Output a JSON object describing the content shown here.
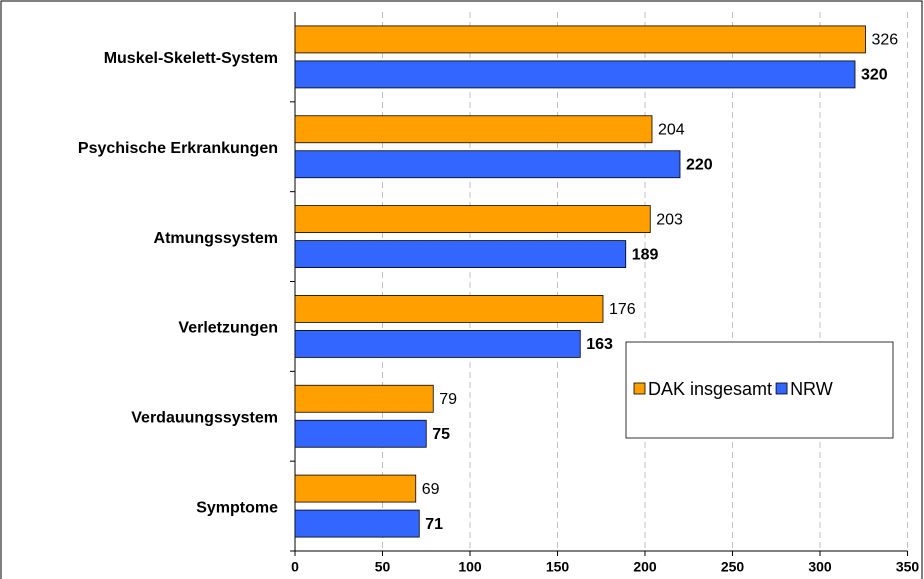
{
  "chart_data": {
    "type": "barh",
    "categories": [
      "Muskel-Skelett-System",
      "Psychische Erkrankungen",
      "Atmungssystem",
      "Verletzungen",
      "Verdauungssystem",
      "Symptome"
    ],
    "series": [
      {
        "name": "DAK insgesamt",
        "color": "#ff9f00",
        "values": [
          326,
          204,
          203,
          176,
          79,
          69
        ]
      },
      {
        "name": "NRW",
        "color": "#3366ff",
        "values": [
          320,
          220,
          189,
          163,
          75,
          71
        ]
      }
    ],
    "xlim": [
      0,
      350
    ],
    "xticks": [
      0,
      50,
      100,
      150,
      200,
      250,
      300,
      350
    ],
    "grid": true
  }
}
